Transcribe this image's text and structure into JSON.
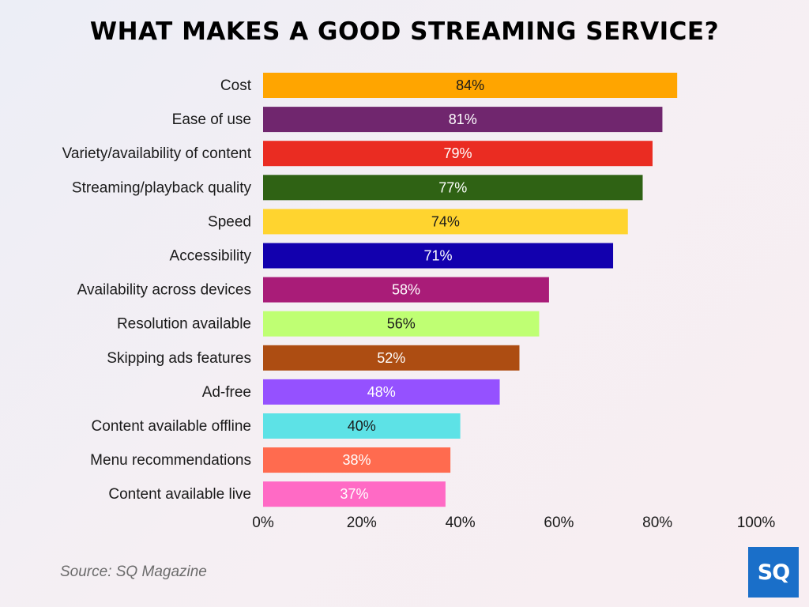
{
  "chart_data": {
    "type": "bar",
    "orientation": "horizontal",
    "title": "WHAT MAKES A GOOD STREAMING SERVICE?",
    "categories": [
      "Cost",
      "Ease of use",
      "Variety/availability of content",
      "Streaming/playback quality",
      "Speed",
      "Accessibility",
      "Availability across devices",
      "Resolution available",
      "Skipping ads features",
      "Ad-free",
      "Content available offline",
      "Menu recommendations",
      "Content available live"
    ],
    "values": [
      84,
      81,
      79,
      77,
      74,
      71,
      58,
      56,
      52,
      48,
      40,
      38,
      37
    ],
    "value_labels": [
      "84%",
      "81%",
      "79%",
      "77%",
      "74%",
      "71%",
      "58%",
      "56%",
      "52%",
      "48%",
      "40%",
      "38%",
      "37%"
    ],
    "bar_colors": [
      "#FFA500",
      "#70266E",
      "#EA2C22",
      "#2F6214",
      "#FFD42F",
      "#1200AE",
      "#A91C78",
      "#BFFF73",
      "#AD4D12",
      "#9551FF",
      "#5DE2E6",
      "#FF6B4F",
      "#FF6AC5"
    ],
    "label_colors": [
      "#1a1a1a",
      "#ffffff",
      "#ffffff",
      "#ffffff",
      "#1a1a1a",
      "#ffffff",
      "#ffffff",
      "#1a1a1a",
      "#ffffff",
      "#ffffff",
      "#1a1a1a",
      "#ffffff",
      "#ffffff"
    ],
    "xlim": [
      0,
      100
    ],
    "x_ticks": [
      0,
      20,
      40,
      60,
      80,
      100
    ],
    "x_tick_labels": [
      "0%",
      "20%",
      "40%",
      "60%",
      "80%",
      "100%"
    ],
    "grid": false,
    "legend": "none"
  },
  "source": "Source: SQ Magazine",
  "logo_text": "SQ"
}
